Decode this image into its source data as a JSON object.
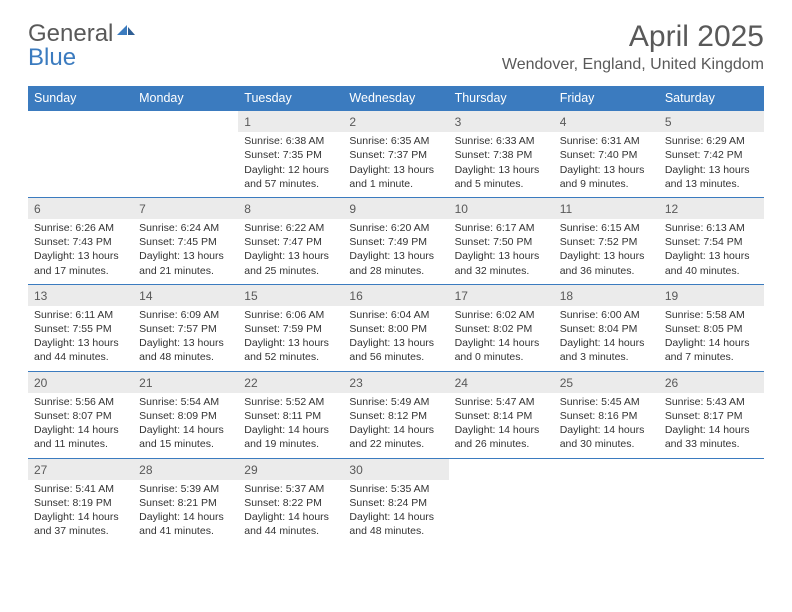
{
  "logo": {
    "part1": "General",
    "part2": "Blue"
  },
  "title": "April 2025",
  "location": "Wendover, England, United Kingdom",
  "header_bg": "#3b7bbf",
  "header_fg": "#ffffff",
  "daynum_bg": "#ebebeb",
  "text_color": "#333333",
  "muted_color": "#595959",
  "dayNames": [
    "Sunday",
    "Monday",
    "Tuesday",
    "Wednesday",
    "Thursday",
    "Friday",
    "Saturday"
  ],
  "weeks": [
    [
      null,
      null,
      {
        "n": "1",
        "sr": "Sunrise: 6:38 AM",
        "ss": "Sunset: 7:35 PM",
        "d1": "Daylight: 12 hours",
        "d2": "and 57 minutes."
      },
      {
        "n": "2",
        "sr": "Sunrise: 6:35 AM",
        "ss": "Sunset: 7:37 PM",
        "d1": "Daylight: 13 hours",
        "d2": "and 1 minute."
      },
      {
        "n": "3",
        "sr": "Sunrise: 6:33 AM",
        "ss": "Sunset: 7:38 PM",
        "d1": "Daylight: 13 hours",
        "d2": "and 5 minutes."
      },
      {
        "n": "4",
        "sr": "Sunrise: 6:31 AM",
        "ss": "Sunset: 7:40 PM",
        "d1": "Daylight: 13 hours",
        "d2": "and 9 minutes."
      },
      {
        "n": "5",
        "sr": "Sunrise: 6:29 AM",
        "ss": "Sunset: 7:42 PM",
        "d1": "Daylight: 13 hours",
        "d2": "and 13 minutes."
      }
    ],
    [
      {
        "n": "6",
        "sr": "Sunrise: 6:26 AM",
        "ss": "Sunset: 7:43 PM",
        "d1": "Daylight: 13 hours",
        "d2": "and 17 minutes."
      },
      {
        "n": "7",
        "sr": "Sunrise: 6:24 AM",
        "ss": "Sunset: 7:45 PM",
        "d1": "Daylight: 13 hours",
        "d2": "and 21 minutes."
      },
      {
        "n": "8",
        "sr": "Sunrise: 6:22 AM",
        "ss": "Sunset: 7:47 PM",
        "d1": "Daylight: 13 hours",
        "d2": "and 25 minutes."
      },
      {
        "n": "9",
        "sr": "Sunrise: 6:20 AM",
        "ss": "Sunset: 7:49 PM",
        "d1": "Daylight: 13 hours",
        "d2": "and 28 minutes."
      },
      {
        "n": "10",
        "sr": "Sunrise: 6:17 AM",
        "ss": "Sunset: 7:50 PM",
        "d1": "Daylight: 13 hours",
        "d2": "and 32 minutes."
      },
      {
        "n": "11",
        "sr": "Sunrise: 6:15 AM",
        "ss": "Sunset: 7:52 PM",
        "d1": "Daylight: 13 hours",
        "d2": "and 36 minutes."
      },
      {
        "n": "12",
        "sr": "Sunrise: 6:13 AM",
        "ss": "Sunset: 7:54 PM",
        "d1": "Daylight: 13 hours",
        "d2": "and 40 minutes."
      }
    ],
    [
      {
        "n": "13",
        "sr": "Sunrise: 6:11 AM",
        "ss": "Sunset: 7:55 PM",
        "d1": "Daylight: 13 hours",
        "d2": "and 44 minutes."
      },
      {
        "n": "14",
        "sr": "Sunrise: 6:09 AM",
        "ss": "Sunset: 7:57 PM",
        "d1": "Daylight: 13 hours",
        "d2": "and 48 minutes."
      },
      {
        "n": "15",
        "sr": "Sunrise: 6:06 AM",
        "ss": "Sunset: 7:59 PM",
        "d1": "Daylight: 13 hours",
        "d2": "and 52 minutes."
      },
      {
        "n": "16",
        "sr": "Sunrise: 6:04 AM",
        "ss": "Sunset: 8:00 PM",
        "d1": "Daylight: 13 hours",
        "d2": "and 56 minutes."
      },
      {
        "n": "17",
        "sr": "Sunrise: 6:02 AM",
        "ss": "Sunset: 8:02 PM",
        "d1": "Daylight: 14 hours",
        "d2": "and 0 minutes."
      },
      {
        "n": "18",
        "sr": "Sunrise: 6:00 AM",
        "ss": "Sunset: 8:04 PM",
        "d1": "Daylight: 14 hours",
        "d2": "and 3 minutes."
      },
      {
        "n": "19",
        "sr": "Sunrise: 5:58 AM",
        "ss": "Sunset: 8:05 PM",
        "d1": "Daylight: 14 hours",
        "d2": "and 7 minutes."
      }
    ],
    [
      {
        "n": "20",
        "sr": "Sunrise: 5:56 AM",
        "ss": "Sunset: 8:07 PM",
        "d1": "Daylight: 14 hours",
        "d2": "and 11 minutes."
      },
      {
        "n": "21",
        "sr": "Sunrise: 5:54 AM",
        "ss": "Sunset: 8:09 PM",
        "d1": "Daylight: 14 hours",
        "d2": "and 15 minutes."
      },
      {
        "n": "22",
        "sr": "Sunrise: 5:52 AM",
        "ss": "Sunset: 8:11 PM",
        "d1": "Daylight: 14 hours",
        "d2": "and 19 minutes."
      },
      {
        "n": "23",
        "sr": "Sunrise: 5:49 AM",
        "ss": "Sunset: 8:12 PM",
        "d1": "Daylight: 14 hours",
        "d2": "and 22 minutes."
      },
      {
        "n": "24",
        "sr": "Sunrise: 5:47 AM",
        "ss": "Sunset: 8:14 PM",
        "d1": "Daylight: 14 hours",
        "d2": "and 26 minutes."
      },
      {
        "n": "25",
        "sr": "Sunrise: 5:45 AM",
        "ss": "Sunset: 8:16 PM",
        "d1": "Daylight: 14 hours",
        "d2": "and 30 minutes."
      },
      {
        "n": "26",
        "sr": "Sunrise: 5:43 AM",
        "ss": "Sunset: 8:17 PM",
        "d1": "Daylight: 14 hours",
        "d2": "and 33 minutes."
      }
    ],
    [
      {
        "n": "27",
        "sr": "Sunrise: 5:41 AM",
        "ss": "Sunset: 8:19 PM",
        "d1": "Daylight: 14 hours",
        "d2": "and 37 minutes."
      },
      {
        "n": "28",
        "sr": "Sunrise: 5:39 AM",
        "ss": "Sunset: 8:21 PM",
        "d1": "Daylight: 14 hours",
        "d2": "and 41 minutes."
      },
      {
        "n": "29",
        "sr": "Sunrise: 5:37 AM",
        "ss": "Sunset: 8:22 PM",
        "d1": "Daylight: 14 hours",
        "d2": "and 44 minutes."
      },
      {
        "n": "30",
        "sr": "Sunrise: 5:35 AM",
        "ss": "Sunset: 8:24 PM",
        "d1": "Daylight: 14 hours",
        "d2": "and 48 minutes."
      },
      null,
      null,
      null
    ]
  ]
}
